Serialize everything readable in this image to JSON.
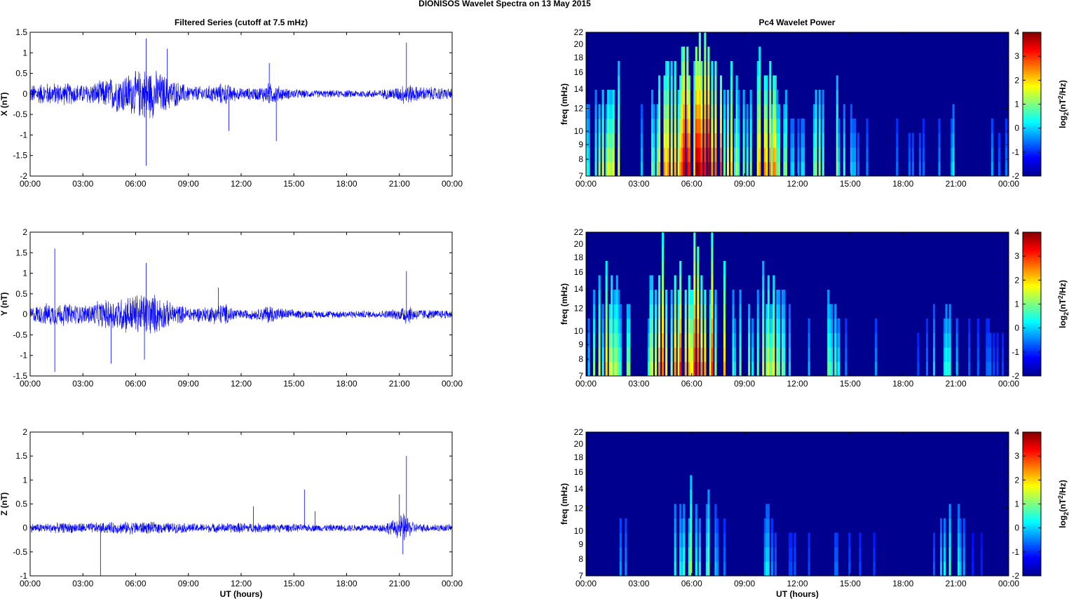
{
  "figure": {
    "title": "DIONISOS Wavelet Spectra on 13 May      2015",
    "left_column_title": "Filtered Series (cutoff at 7.5 mHz)",
    "right_column_title": "Pc4 Wavelet Power",
    "xlabel": "UT (hours)"
  },
  "chart_data": [
    {
      "type": "line",
      "title": "Filtered Series (cutoff at 7.5 mHz)",
      "ylabel": "X (nT)",
      "xlabel": "",
      "xticks": [
        "00:00",
        "03:00",
        "06:00",
        "09:00",
        "12:00",
        "15:00",
        "18:00",
        "21:00",
        "00:00"
      ],
      "xlim_hours": [
        0,
        24
      ],
      "ylim": [
        -2,
        1.5
      ],
      "yticks": [
        "-2",
        "-1.5",
        "-1",
        "-0.5",
        "0",
        "0.5",
        "1",
        "1.5"
      ],
      "ytick_values": [
        -2,
        -1.5,
        -1,
        -0.5,
        0,
        0.5,
        1,
        1.5
      ],
      "color": "#0000ff",
      "series": [
        {
          "envelope_hours": [
            0,
            1,
            2,
            3,
            4,
            5,
            5.5,
            6,
            6.5,
            7,
            7.5,
            8,
            9,
            10,
            11,
            11.5,
            12,
            13,
            13.6,
            14,
            14.5,
            15,
            16,
            17,
            18,
            19,
            20,
            21,
            21.3,
            22,
            23,
            24
          ],
          "envelope_amp": [
            0.25,
            0.3,
            0.3,
            0.25,
            0.35,
            0.5,
            0.55,
            0.6,
            0.7,
            0.65,
            0.55,
            0.4,
            0.22,
            0.2,
            0.3,
            0.22,
            0.15,
            0.18,
            0.3,
            0.25,
            0.15,
            0.13,
            0.1,
            0.1,
            0.1,
            0.1,
            0.12,
            0.2,
            0.3,
            0.2,
            0.18,
            0.15
          ],
          "spikes": [
            {
              "x": 6.6,
              "y": 1.35
            },
            {
              "x": 6.6,
              "y": -1.75
            },
            {
              "x": 11.3,
              "y": -0.9
            },
            {
              "x": 14.0,
              "y": -1.15
            },
            {
              "x": 21.4,
              "y": 1.25
            },
            {
              "x": 13.6,
              "y": 0.75
            },
            {
              "x": 7.8,
              "y": 1.1
            }
          ]
        }
      ]
    },
    {
      "type": "line",
      "ylabel": "Y (nT)",
      "xticks": [
        "00:00",
        "03:00",
        "06:00",
        "09:00",
        "12:00",
        "15:00",
        "18:00",
        "21:00",
        "00:00"
      ],
      "xlim_hours": [
        0,
        24
      ],
      "ylim": [
        -1.5,
        2
      ],
      "yticks": [
        "-1.5",
        "-1",
        "-0.5",
        "0",
        "0.5",
        "1",
        "1.5",
        "2"
      ],
      "ytick_values": [
        -1.5,
        -1,
        -0.5,
        0,
        0.5,
        1,
        1.5,
        2
      ],
      "color": "#0000ff",
      "series": [
        {
          "envelope_hours": [
            0,
            1,
            2,
            3,
            4,
            5,
            5.5,
            6,
            6.5,
            7,
            7.5,
            8,
            9,
            10,
            11,
            11.5,
            12,
            13,
            13.6,
            14,
            15,
            16,
            17,
            18,
            19,
            20,
            21,
            21.3,
            22,
            23,
            24
          ],
          "envelope_amp": [
            0.2,
            0.3,
            0.3,
            0.25,
            0.35,
            0.45,
            0.5,
            0.55,
            0.6,
            0.55,
            0.45,
            0.3,
            0.2,
            0.2,
            0.3,
            0.2,
            0.12,
            0.15,
            0.28,
            0.18,
            0.12,
            0.1,
            0.1,
            0.1,
            0.1,
            0.1,
            0.15,
            0.3,
            0.15,
            0.12,
            0.12
          ],
          "spikes": [
            {
              "x": 1.4,
              "y": 1.6
            },
            {
              "x": 1.4,
              "y": -1.4
            },
            {
              "x": 6.6,
              "y": 1.25
            },
            {
              "x": 4.6,
              "y": -1.2
            },
            {
              "x": 6.5,
              "y": -1.1
            },
            {
              "x": 21.4,
              "y": 1.05
            },
            {
              "x": 10.7,
              "y": 0.65
            }
          ]
        }
      ]
    },
    {
      "type": "line",
      "ylabel": "Z (nT)",
      "xlabel": "UT (hours)",
      "xticks": [
        "00:00",
        "03:00",
        "06:00",
        "09:00",
        "12:00",
        "15:00",
        "18:00",
        "21:00",
        "00:00"
      ],
      "xlim_hours": [
        0,
        24
      ],
      "ylim": [
        -1,
        2
      ],
      "yticks": [
        "-1",
        "-0.5",
        "0",
        "0.5",
        "1",
        "1.5",
        "2"
      ],
      "ytick_values": [
        -1,
        -0.5,
        0,
        0.5,
        1,
        1.5,
        2
      ],
      "color": "#0000ff",
      "series": [
        {
          "envelope_hours": [
            0,
            2,
            4,
            6,
            8,
            10,
            12,
            14,
            16,
            18,
            20,
            20.8,
            21.2,
            21.6,
            22,
            24
          ],
          "envelope_amp": [
            0.1,
            0.12,
            0.12,
            0.15,
            0.12,
            0.1,
            0.12,
            0.1,
            0.08,
            0.08,
            0.1,
            0.2,
            0.35,
            0.2,
            0.1,
            0.08
          ],
          "spikes": [
            {
              "x": 21.4,
              "y": 1.5
            },
            {
              "x": 4.0,
              "y": -1.0
            },
            {
              "x": 15.6,
              "y": 0.8
            },
            {
              "x": 21.0,
              "y": 0.7
            },
            {
              "x": 21.2,
              "y": -0.55
            },
            {
              "x": 12.7,
              "y": 0.45
            },
            {
              "x": 16.2,
              "y": 0.35
            }
          ]
        }
      ]
    },
    {
      "type": "heatmap",
      "title": "Pc4 Wavelet Power",
      "ylabel": "freq (mHz)",
      "xticks": [
        "00:00",
        "03:00",
        "06:00",
        "09:00",
        "12:00",
        "15:00",
        "18:00",
        "21:00",
        "00:00"
      ],
      "xlim_hours": [
        0,
        24
      ],
      "ylim_mHz": [
        7,
        22
      ],
      "ytick_values": [
        7,
        8,
        9,
        10,
        12,
        14,
        16,
        18,
        20,
        22
      ],
      "yticks": [
        "7",
        "8",
        "9",
        "10",
        "12",
        "14",
        "16",
        "18",
        "20",
        "22"
      ],
      "colorbar": {
        "label": "log2(nT2/Hz)",
        "ticks": [
          "4",
          "3",
          "2",
          "1",
          "0",
          "-1",
          "-2"
        ],
        "range": [
          -2,
          4
        ],
        "colormap": "jet"
      },
      "activity_hours": [
        0,
        0.5,
        1,
        1.5,
        2,
        2.5,
        3,
        3.5,
        4,
        4.5,
        5,
        5.5,
        6,
        6.5,
        7,
        7.5,
        8,
        8.5,
        9,
        9.5,
        10,
        10.5,
        11,
        11.5,
        12,
        12.5,
        13,
        13.5,
        14,
        14.5,
        15,
        15.5,
        16,
        16.5,
        17,
        17.5,
        18,
        18.5,
        19,
        19.5,
        20,
        20.5,
        21,
        21.5,
        22,
        22.5,
        23,
        23.5,
        24
      ],
      "activity_level": [
        0.45,
        0.55,
        0.6,
        0.6,
        0.5,
        0.4,
        0.4,
        0.5,
        0.65,
        0.75,
        0.85,
        0.9,
        0.95,
        1.0,
        0.95,
        0.85,
        0.75,
        0.6,
        0.55,
        0.65,
        0.75,
        0.8,
        0.6,
        0.4,
        0.35,
        0.4,
        0.55,
        0.65,
        0.6,
        0.45,
        0.3,
        0.2,
        0.25,
        0.15,
        0.15,
        0.15,
        0.15,
        0.15,
        0.15,
        0.15,
        0.2,
        0.3,
        0.35,
        0.25,
        0.15,
        0.15,
        0.2,
        0.15,
        0.15
      ]
    },
    {
      "type": "heatmap",
      "ylabel": "freq (mHz)",
      "xticks": [
        "00:00",
        "03:00",
        "06:00",
        "09:00",
        "12:00",
        "15:00",
        "18:00",
        "21:00",
        "00:00"
      ],
      "xlim_hours": [
        0,
        24
      ],
      "ylim_mHz": [
        7,
        22
      ],
      "ytick_values": [
        7,
        8,
        9,
        10,
        12,
        14,
        16,
        18,
        20,
        22
      ],
      "yticks": [
        "7",
        "8",
        "9",
        "10",
        "12",
        "14",
        "16",
        "18",
        "20",
        "22"
      ],
      "colorbar": {
        "label": "log2(nT2/Hz)",
        "ticks": [
          "4",
          "3",
          "2",
          "1",
          "0",
          "-1",
          "-2"
        ],
        "range": [
          -2,
          4
        ],
        "colormap": "jet"
      },
      "activity_hours": [
        0,
        0.5,
        1,
        1.5,
        2,
        2.5,
        3,
        3.5,
        4,
        4.5,
        5,
        5.5,
        6,
        6.5,
        7,
        7.5,
        8,
        8.5,
        9,
        9.5,
        10,
        10.5,
        11,
        11.5,
        12,
        12.5,
        13,
        13.5,
        14,
        14.5,
        15,
        15.5,
        16,
        16.5,
        17,
        17.5,
        18,
        18.5,
        19,
        19.5,
        20,
        20.5,
        21,
        21.5,
        22,
        22.5,
        23,
        23.5,
        24
      ],
      "activity_level": [
        0.4,
        0.55,
        0.65,
        0.6,
        0.55,
        0.45,
        0.45,
        0.55,
        0.7,
        0.8,
        0.85,
        0.9,
        0.95,
        1.0,
        0.9,
        0.8,
        0.6,
        0.45,
        0.4,
        0.5,
        0.6,
        0.65,
        0.5,
        0.35,
        0.3,
        0.35,
        0.5,
        0.6,
        0.45,
        0.3,
        0.2,
        0.2,
        0.3,
        0.2,
        0.15,
        0.15,
        0.15,
        0.15,
        0.15,
        0.2,
        0.3,
        0.35,
        0.3,
        0.2,
        0.15,
        0.15,
        0.15,
        0.15,
        0.15
      ]
    },
    {
      "type": "heatmap",
      "ylabel": "freq (mHz)",
      "xlabel": "UT (hours)",
      "xticks": [
        "00:00",
        "03:00",
        "06:00",
        "09:00",
        "12:00",
        "15:00",
        "18:00",
        "21:00",
        "00:00"
      ],
      "xlim_hours": [
        0,
        24
      ],
      "ylim_mHz": [
        7,
        22
      ],
      "ytick_values": [
        7,
        8,
        9,
        10,
        12,
        14,
        16,
        18,
        20,
        22
      ],
      "yticks": [
        "7",
        "8",
        "9",
        "10",
        "12",
        "14",
        "16",
        "18",
        "20",
        "22"
      ],
      "colorbar": {
        "label": "log2(nT2/Hz)",
        "ticks": [
          "4",
          "3",
          "2",
          "1",
          "0",
          "-1",
          "-2"
        ],
        "range": [
          -2,
          4
        ],
        "colormap": "jet"
      },
      "activity_hours": [
        0,
        0.5,
        1,
        1.5,
        2,
        2.5,
        3,
        3.5,
        4,
        4.5,
        5,
        5.5,
        6,
        6.5,
        7,
        7.5,
        8,
        8.5,
        9,
        9.5,
        10,
        10.5,
        11,
        11.5,
        12,
        12.5,
        13,
        13.5,
        14,
        14.5,
        15,
        15.5,
        16,
        16.5,
        17,
        17.5,
        18,
        18.5,
        19,
        19.5,
        20,
        20.5,
        21,
        21.5,
        22,
        22.5,
        23,
        23.5,
        24
      ],
      "activity_level": [
        0.05,
        0.05,
        0.1,
        0.25,
        0.2,
        0.2,
        0.1,
        0.1,
        0.2,
        0.25,
        0.35,
        0.45,
        0.5,
        0.55,
        0.45,
        0.3,
        0.2,
        0.1,
        0.1,
        0.15,
        0.3,
        0.25,
        0.15,
        0.1,
        0.1,
        0.1,
        0.2,
        0.4,
        0.15,
        0.1,
        0.1,
        0.1,
        0.1,
        0.1,
        0.05,
        0.05,
        0.05,
        0.05,
        0.05,
        0.1,
        0.2,
        0.55,
        0.6,
        0.2,
        0.05,
        0.05,
        0.05,
        0.05,
        0.05
      ]
    }
  ]
}
